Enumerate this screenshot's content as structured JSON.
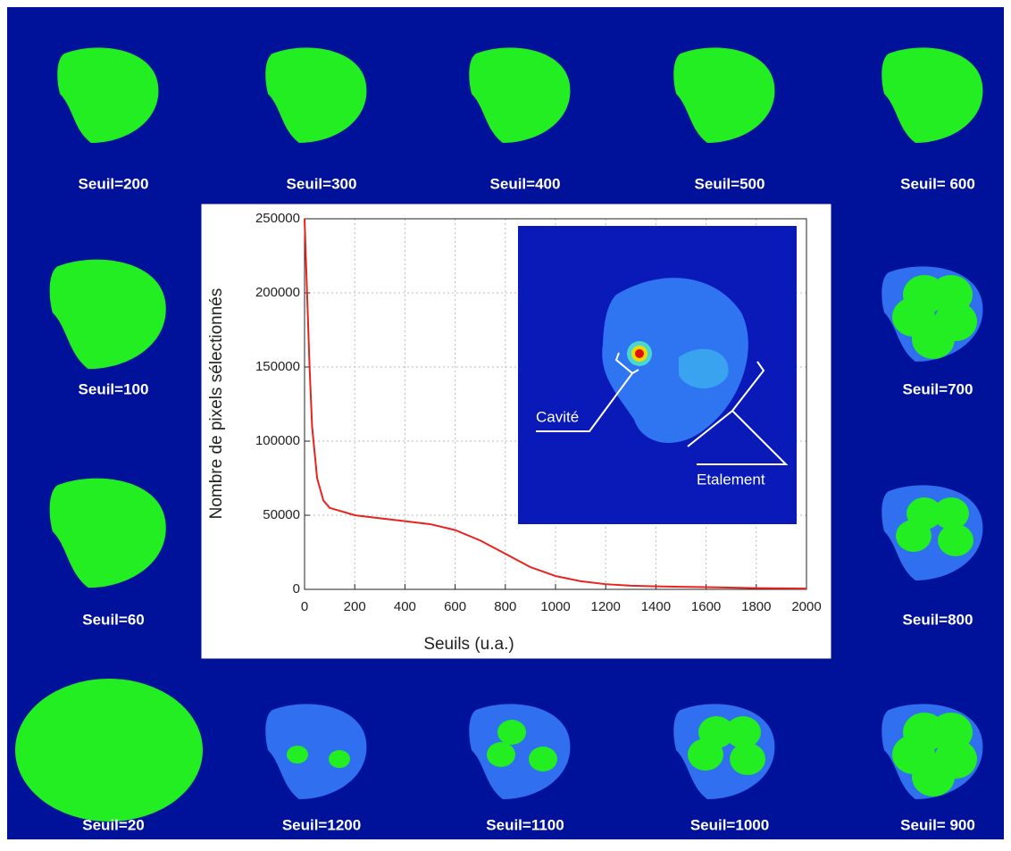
{
  "panels": [
    "Seuil=200",
    "Seuil=300",
    "Seuil=400",
    "Seuil=500",
    "Seuil= 600",
    "Seuil=100",
    "Seuil=700",
    "Seuil=60",
    "Seuil=800",
    "Seuil=20",
    "Seuil=1200",
    "Seuil=1100",
    "Seuil=1000",
    "Seuil= 900"
  ],
  "chart_data": {
    "type": "line",
    "x_label": "Seuils (u.a.)",
    "y_label": "Nombre de pixels sélectionnés",
    "x": [
      0,
      10,
      20,
      30,
      50,
      75,
      100,
      200,
      300,
      400,
      500,
      600,
      700,
      800,
      900,
      1000,
      1100,
      1200,
      1300,
      1400,
      1600,
      1800,
      2000
    ],
    "series": [
      {
        "name": "Nombre de pixels",
        "color": "#e8231e",
        "values": [
          250000,
          200000,
          150000,
          110000,
          75000,
          60000,
          55000,
          50000,
          48000,
          46000,
          44000,
          40000,
          33000,
          24000,
          15000,
          9000,
          5500,
          3500,
          2500,
          2000,
          1500,
          800,
          500
        ]
      }
    ],
    "xlim": [
      0,
      2000
    ],
    "ylim": [
      0,
      250000
    ],
    "xticks": [
      0,
      200,
      400,
      600,
      800,
      1000,
      1200,
      1400,
      1600,
      1800,
      2000
    ],
    "yticks": [
      0,
      50000,
      100000,
      150000,
      200000,
      250000
    ],
    "grid": true,
    "annotations": [
      "Cavité",
      "Etalement"
    ]
  }
}
